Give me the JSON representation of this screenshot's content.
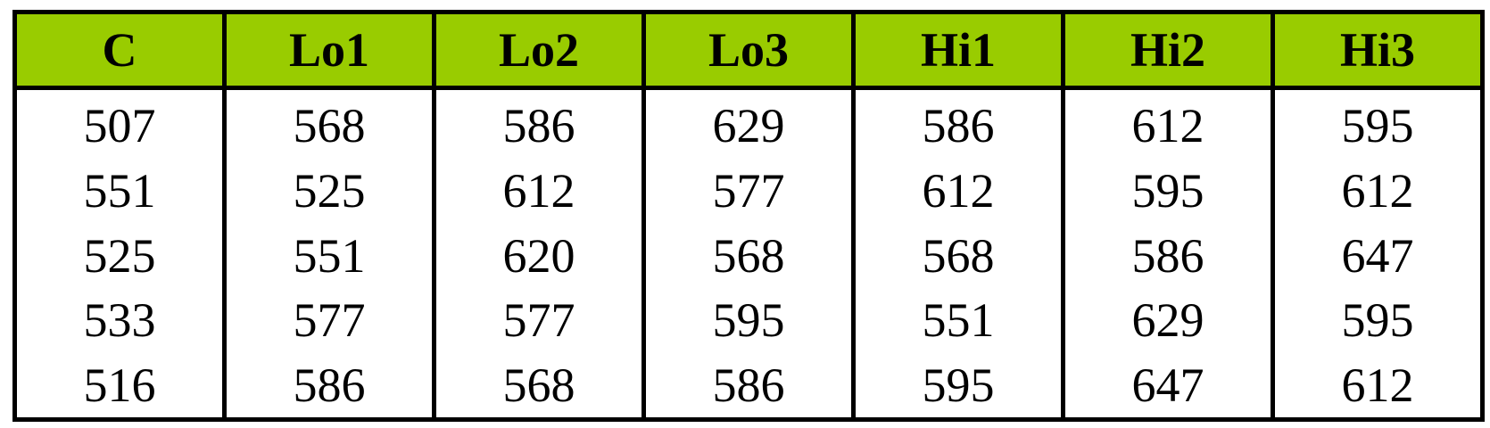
{
  "table": {
    "header_bg": "#99cc00",
    "border_color": "#000000",
    "headers": [
      "C",
      "Lo1",
      "Lo2",
      "Lo3",
      "Hi1",
      "Hi2",
      "Hi3"
    ],
    "rows": [
      [
        "507",
        "568",
        "586",
        "629",
        "586",
        "612",
        "595"
      ],
      [
        "551",
        "525",
        "612",
        "577",
        "612",
        "595",
        "612"
      ],
      [
        "525",
        "551",
        "620",
        "568",
        "568",
        "586",
        "647"
      ],
      [
        "533",
        "577",
        "577",
        "595",
        "551",
        "629",
        "595"
      ],
      [
        "516",
        "586",
        "568",
        "586",
        "595",
        "647",
        "612"
      ]
    ]
  }
}
